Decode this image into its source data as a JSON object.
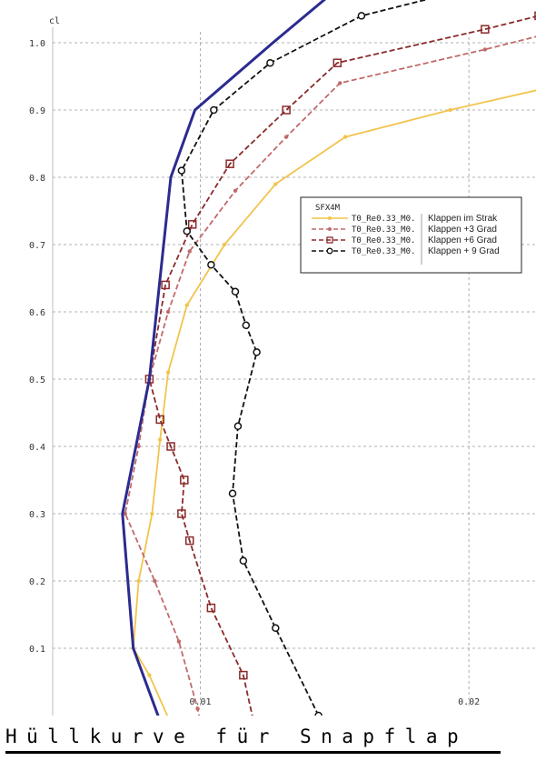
{
  "chart_data": {
    "type": "line",
    "ylabel": "cl",
    "xlim": [
      0.0045,
      0.0225
    ],
    "ylim": [
      0.0,
      1.05
    ],
    "x_ticks": [
      {
        "value": 0.01,
        "label": "0.01"
      },
      {
        "value": 0.02,
        "label": "0.02"
      }
    ],
    "y_ticks": [
      {
        "value": 0.1,
        "label": "0.1"
      },
      {
        "value": 0.2,
        "label": "0.2"
      },
      {
        "value": 0.3,
        "label": "0.3"
      },
      {
        "value": 0.4,
        "label": "0.4"
      },
      {
        "value": 0.5,
        "label": "0.5"
      },
      {
        "value": 0.6,
        "label": "0.6"
      },
      {
        "value": 0.7,
        "label": "0.7"
      },
      {
        "value": 0.8,
        "label": "0.8"
      },
      {
        "value": 0.9,
        "label": "0.9"
      },
      {
        "value": 1.0,
        "label": "1.0"
      }
    ],
    "grid": "dashed",
    "legend": {
      "position": "right",
      "title": "SFX4M",
      "entries": [
        {
          "name": "T0_Re0.33_M0.",
          "desc": "Klappen im Strak"
        },
        {
          "name": "T0_Re0.33_M0.",
          "desc": "Klappen +3 Grad"
        },
        {
          "name": "T0_Re0.33_M0.",
          "desc": "Klappen +6 Grad"
        },
        {
          "name": "T0_Re0.33_M0.",
          "desc": "Klappen + 9 Grad"
        }
      ]
    },
    "series": [
      {
        "color": "#f2c44c",
        "dash": "solid",
        "marker": "dot",
        "points": [
          [
            0.0091,
            -0.03
          ],
          [
            0.0081,
            0.06
          ],
          [
            0.0075,
            0.1
          ],
          [
            0.0077,
            0.2
          ],
          [
            0.0082,
            0.3
          ],
          [
            0.0085,
            0.41
          ],
          [
            0.0088,
            0.51
          ],
          [
            0.0095,
            0.61
          ],
          [
            0.0109,
            0.7
          ],
          [
            0.0128,
            0.79
          ],
          [
            0.0154,
            0.86
          ],
          [
            0.0193,
            0.9
          ],
          [
            0.0226,
            0.93
          ]
        ]
      },
      {
        "color": "#c06a6a",
        "dash": "dashed",
        "marker": "dot",
        "points": [
          [
            0.0101,
            -0.03
          ],
          [
            0.0099,
            0.01
          ],
          [
            0.0092,
            0.11
          ],
          [
            0.0083,
            0.2
          ],
          [
            0.0072,
            0.3
          ],
          [
            0.0077,
            0.4
          ],
          [
            0.0081,
            0.5
          ],
          [
            0.0088,
            0.6
          ],
          [
            0.0096,
            0.69
          ],
          [
            0.0113,
            0.78
          ],
          [
            0.0132,
            0.86
          ],
          [
            0.0152,
            0.94
          ],
          [
            0.0206,
            0.99
          ],
          [
            0.0226,
            1.01
          ]
        ]
      },
      {
        "color": "#8b2a2a",
        "dash": "dashed",
        "marker": "square",
        "points": [
          [
            0.0121,
            -0.03
          ],
          [
            0.0116,
            0.06
          ],
          [
            0.0104,
            0.16
          ],
          [
            0.0096,
            0.26
          ],
          [
            0.0093,
            0.3
          ],
          [
            0.0094,
            0.35
          ],
          [
            0.0089,
            0.4
          ],
          [
            0.0085,
            0.44
          ],
          [
            0.0081,
            0.5
          ],
          [
            0.0087,
            0.64
          ],
          [
            0.0097,
            0.73
          ],
          [
            0.0111,
            0.82
          ],
          [
            0.0132,
            0.9
          ],
          [
            0.0151,
            0.97
          ],
          [
            0.0206,
            1.02
          ],
          [
            0.0226,
            1.04
          ]
        ]
      },
      {
        "color": "#111111",
        "dash": "dashed",
        "marker": "circle",
        "points": [
          [
            0.0144,
            0.0
          ],
          [
            0.0128,
            0.13
          ],
          [
            0.0116,
            0.23
          ],
          [
            0.0112,
            0.33
          ],
          [
            0.0114,
            0.43
          ],
          [
            0.0121,
            0.54
          ],
          [
            0.0117,
            0.58
          ],
          [
            0.0113,
            0.63
          ],
          [
            0.0104,
            0.67
          ],
          [
            0.0095,
            0.72
          ],
          [
            0.0093,
            0.81
          ],
          [
            0.0105,
            0.9
          ],
          [
            0.0126,
            0.97
          ],
          [
            0.016,
            1.04
          ],
          [
            0.019,
            1.07
          ]
        ]
      },
      {
        "color": "#2c2b8f",
        "dash": "solid",
        "marker": "none",
        "width": 3,
        "points": [
          [
            0.0087,
            -0.03
          ],
          [
            0.0075,
            0.1
          ],
          [
            0.0071,
            0.3
          ],
          [
            0.0081,
            0.5
          ],
          [
            0.0089,
            0.8
          ],
          [
            0.0098,
            0.9
          ],
          [
            0.0127,
            1.0
          ],
          [
            0.0148,
            1.07
          ]
        ]
      }
    ]
  },
  "caption": "Hüllkurve für Snapflap"
}
